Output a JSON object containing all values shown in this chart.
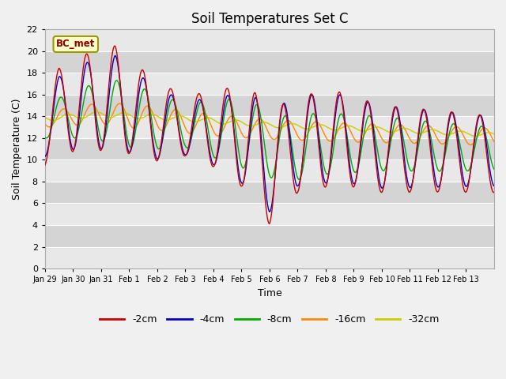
{
  "title": "Soil Temperatures Set C",
  "xlabel": "Time",
  "ylabel": "Soil Temperature (C)",
  "ylim": [
    0,
    22
  ],
  "yticks": [
    0,
    2,
    4,
    6,
    8,
    10,
    12,
    14,
    16,
    18,
    20,
    22
  ],
  "x_labels": [
    "Jan 29",
    "Jan 30",
    "Jan 31",
    "Feb 1",
    "Feb 2",
    "Feb 3",
    "Feb 4",
    "Feb 5",
    "Feb 6",
    "Feb 7",
    "Feb 8",
    "Feb 9",
    "Feb 10",
    "Feb 11",
    "Feb 12",
    "Feb 13"
  ],
  "series_labels": [
    "-2cm",
    "-4cm",
    "-8cm",
    "-16cm",
    "-32cm"
  ],
  "series_colors": [
    "#cc0000",
    "#0000cc",
    "#00aa00",
    "#ff8800",
    "#cccc00"
  ],
  "bc_met_label": "BC_met",
  "background_color": "#f0f0f0",
  "plot_bg_color": "#e8e8e8",
  "title_fontsize": 12,
  "axis_fontsize": 9,
  "tick_fontsize": 8,
  "legend_fontsize": 9,
  "n_days": 16,
  "figsize": [
    6.4,
    4.8
  ],
  "dpi": 100
}
